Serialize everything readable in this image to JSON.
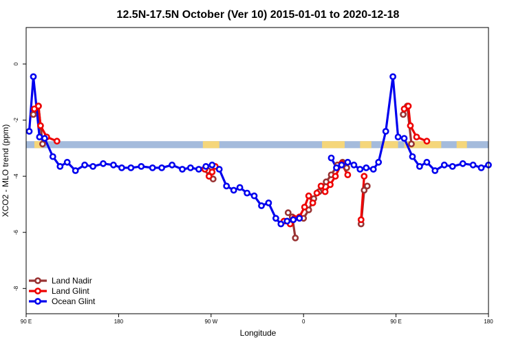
{
  "chart_data": {
    "type": "line",
    "title": "12.5N-17.5N October (Ver 10)   2015-01-01 to 2020-12-18",
    "xlabel": "Longitude",
    "ylabel": "XCO2 - MLO trend (ppm)",
    "x_ticks": [
      {
        "value": 90,
        "label": "90 E"
      },
      {
        "value": 180,
        "label": "180"
      },
      {
        "value": 270,
        "label": "90 W"
      },
      {
        "value": 360,
        "label": "0"
      },
      {
        "value": 450,
        "label": "90 E"
      },
      {
        "value": 540,
        "label": "180"
      }
    ],
    "y_ticks": [
      {
        "value": 0,
        "label": "0"
      },
      {
        "value": -2,
        "label": "-2"
      },
      {
        "value": -4,
        "label": "-4"
      },
      {
        "value": -6,
        "label": "-6"
      },
      {
        "value": -8,
        "label": "-8"
      }
    ],
    "xlim": [
      90,
      540
    ],
    "ylim": [
      -8.9,
      1.3
    ],
    "legend_position": "bottom-left",
    "land_mask": {
      "y_range": [
        -3.0,
        -2.75
      ],
      "land_color": "#f5d67a",
      "ocean_color": "#a4bbdc",
      "land_spans": [
        [
          98,
          106
        ],
        [
          262,
          278
        ],
        [
          378,
          400
        ],
        [
          415,
          426
        ],
        [
          436,
          452
        ],
        [
          458,
          494
        ],
        [
          509,
          519
        ]
      ]
    },
    "series": [
      {
        "name": "Land Nadir",
        "color": "#993333",
        "segments": [
          [
            [
              97,
              -1.8
            ],
            [
              102,
              -1.5
            ],
            [
              106,
              -2.85
            ]
          ],
          [
            [
              267,
              -3.8
            ],
            [
              272,
              -4.1
            ]
          ],
          [
            [
              345,
              -5.3
            ],
            [
              349,
              -5.45
            ],
            [
              352,
              -6.2
            ]
          ],
          [
            [
              360,
              -5.5
            ],
            [
              365,
              -5.2
            ],
            [
              370,
              -4.8
            ],
            [
              375,
              -4.55
            ],
            [
              382,
              -4.2
            ],
            [
              387,
              -3.95
            ],
            [
              393,
              -3.6
            ],
            [
              398,
              -3.5
            ],
            [
              402,
              -3.7
            ]
          ],
          [
            [
              416,
              -5.7
            ],
            [
              419,
              -4.5
            ],
            [
              422,
              -4.35
            ]
          ],
          [
            [
              457,
              -1.8
            ],
            [
              461,
              -1.5
            ],
            [
              465,
              -2.85
            ]
          ]
        ]
      },
      {
        "name": "Land Glint",
        "color": "#ee0000",
        "segments": [
          [
            [
              98,
              -1.6
            ],
            [
              102,
              -1.5
            ],
            [
              104,
              -2.2
            ],
            [
              110,
              -2.6
            ],
            [
              120,
              -2.75
            ]
          ],
          [
            [
              264,
              -3.75
            ],
            [
              268,
              -4.0
            ],
            [
              271,
              -3.85
            ],
            [
              274,
              -3.65
            ]
          ],
          [
            [
              341,
              -5.6
            ],
            [
              347,
              -5.7
            ],
            [
              351,
              -5.5
            ],
            [
              356,
              -5.45
            ],
            [
              361,
              -5.1
            ],
            [
              365,
              -4.7
            ],
            [
              369,
              -4.95
            ],
            [
              373,
              -4.6
            ],
            [
              377,
              -4.35
            ],
            [
              381,
              -4.55
            ],
            [
              386,
              -4.3
            ],
            [
              391,
              -4.0
            ],
            [
              397,
              -3.55
            ],
            [
              403,
              -3.95
            ]
          ],
          [
            [
              416,
              -5.55
            ],
            [
              419,
              -4.0
            ]
          ],
          [
            [
              458,
              -1.6
            ],
            [
              462,
              -1.5
            ],
            [
              464,
              -2.2
            ],
            [
              470,
              -2.6
            ],
            [
              480,
              -2.75
            ]
          ]
        ]
      },
      {
        "name": "Ocean Glint",
        "color": "#0000ee",
        "segments": [
          [
            [
              93,
              -2.4
            ],
            [
              97,
              -0.45
            ],
            [
              103,
              -2.6
            ],
            [
              108,
              -2.65
            ],
            [
              116,
              -3.3
            ],
            [
              123,
              -3.65
            ],
            [
              130,
              -3.5
            ],
            [
              138,
              -3.8
            ],
            [
              147,
              -3.6
            ],
            [
              155,
              -3.65
            ],
            [
              165,
              -3.55
            ],
            [
              175,
              -3.6
            ],
            [
              183,
              -3.7
            ],
            [
              192,
              -3.7
            ],
            [
              202,
              -3.65
            ],
            [
              213,
              -3.7
            ],
            [
              222,
              -3.7
            ],
            [
              232,
              -3.6
            ],
            [
              242,
              -3.75
            ],
            [
              250,
              -3.7
            ],
            [
              258,
              -3.75
            ],
            [
              265,
              -3.65
            ],
            [
              271,
              -3.6
            ],
            [
              278,
              -3.75
            ],
            [
              285,
              -4.35
            ],
            [
              292,
              -4.5
            ],
            [
              298,
              -4.4
            ],
            [
              305,
              -4.6
            ],
            [
              312,
              -4.7
            ],
            [
              319,
              -5.05
            ],
            [
              326,
              -4.95
            ],
            [
              333,
              -5.5
            ],
            [
              338,
              -5.7
            ],
            [
              344,
              -5.6
            ],
            [
              350,
              -5.55
            ],
            [
              356,
              -5.5
            ]
          ],
          [
            [
              387,
              -3.35
            ],
            [
              392,
              -3.7
            ],
            [
              397,
              -3.6
            ],
            [
              403,
              -3.5
            ],
            [
              409,
              -3.6
            ],
            [
              415,
              -3.75
            ],
            [
              421,
              -3.7
            ],
            [
              428,
              -3.75
            ],
            [
              433,
              -3.5
            ],
            [
              440,
              -2.4
            ],
            [
              447,
              -0.45
            ],
            [
              452,
              -2.6
            ],
            [
              458,
              -2.65
            ],
            [
              466,
              -3.3
            ],
            [
              473,
              -3.65
            ],
            [
              480,
              -3.5
            ],
            [
              488,
              -3.8
            ],
            [
              497,
              -3.6
            ],
            [
              505,
              -3.65
            ],
            [
              515,
              -3.55
            ],
            [
              525,
              -3.6
            ],
            [
              533,
              -3.7
            ],
            [
              540,
              -3.6
            ]
          ]
        ]
      }
    ]
  }
}
